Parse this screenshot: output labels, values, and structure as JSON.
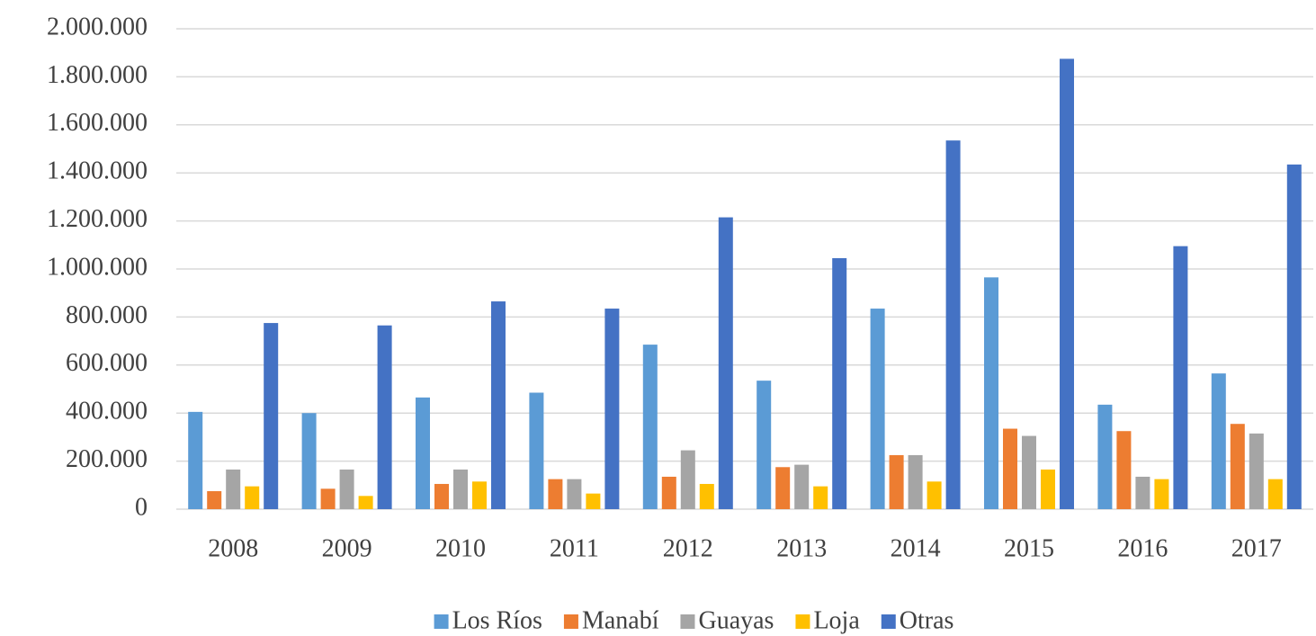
{
  "chart_data": {
    "type": "bar",
    "categories": [
      "2008",
      "2009",
      "2010",
      "2011",
      "2012",
      "2013",
      "2014",
      "2015",
      "2016",
      "2017"
    ],
    "series": [
      {
        "name": "Los Ríos",
        "color": "#5b9bd5",
        "values": [
          405000,
          400000,
          465000,
          485000,
          685000,
          535000,
          835000,
          965000,
          435000,
          565000
        ]
      },
      {
        "name": "Manabí",
        "color": "#ed7d31",
        "values": [
          75000,
          85000,
          105000,
          125000,
          135000,
          175000,
          225000,
          335000,
          325000,
          355000
        ]
      },
      {
        "name": "Guayas",
        "color": "#a5a5a5",
        "values": [
          165000,
          165000,
          165000,
          125000,
          245000,
          185000,
          225000,
          305000,
          135000,
          315000
        ]
      },
      {
        "name": "Loja",
        "color": "#ffc000",
        "values": [
          95000,
          55000,
          115000,
          65000,
          105000,
          95000,
          115000,
          165000,
          125000,
          125000
        ]
      },
      {
        "name": "Otras",
        "color": "#4472c4",
        "values": [
          775000,
          765000,
          865000,
          835000,
          1215000,
          1045000,
          1535000,
          1875000,
          1095000,
          1435000
        ]
      }
    ],
    "ylim": [
      0,
      2000000
    ],
    "yticks": [
      0,
      {
        "value": 200000,
        "label": "200.000"
      },
      {
        "value": 400000,
        "label": "400.000"
      },
      {
        "value": 600000,
        "label": "600.000"
      },
      {
        "value": 800000,
        "label": "800.000"
      },
      {
        "value": 1000000,
        "label": "1.000.000"
      },
      {
        "value": 1200000,
        "label": "1.200.000"
      },
      {
        "value": 1400000,
        "label": "1.400.000"
      },
      {
        "value": 1600000,
        "label": "1.600.000"
      },
      {
        "value": 1800000,
        "label": "1.800.000"
      },
      {
        "value": 2000000,
        "label": "2.000.000"
      }
    ],
    "grid": true,
    "legend": "bottom"
  }
}
